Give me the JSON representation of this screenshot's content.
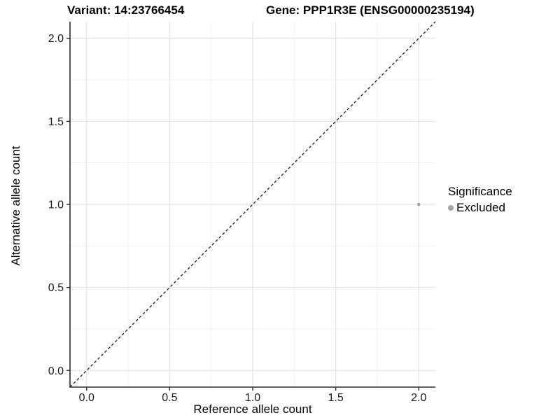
{
  "figure": {
    "title_left": "Variant: 14:23766454",
    "title_right": "Gene: PPP1R3E (ENSG00000235194)"
  },
  "chart_data": {
    "type": "scatter",
    "title": "Variant: 14:23766454   Gene: PPP1R3E (ENSG00000235194)",
    "xlabel": "Reference allele count",
    "ylabel": "Alternative allele count",
    "xlim": [
      -0.1,
      2.1
    ],
    "ylim": [
      -0.1,
      2.1
    ],
    "x_ticks": [
      0.0,
      0.5,
      1.0,
      1.5,
      2.0
    ],
    "y_ticks": [
      0.0,
      0.5,
      1.0,
      1.5,
      2.0
    ],
    "x_tick_labels": [
      "0.0",
      "0.5",
      "1.0",
      "1.5",
      "2.0"
    ],
    "y_tick_labels": [
      "0.0",
      "0.5",
      "1.0",
      "1.5",
      "2.0"
    ],
    "x_minor_ticks": [
      0.25,
      0.75,
      1.25,
      1.75
    ],
    "y_minor_ticks": [
      0.25,
      0.75,
      1.25,
      1.75
    ],
    "grid": true,
    "legend_position": "right",
    "series": [
      {
        "name": "Excluded",
        "marker": "circle",
        "color": "#a3a3a3",
        "point_radius": 2.3,
        "points": [
          {
            "x": 2.0,
            "y": 1.0
          }
        ]
      }
    ],
    "reference_line": {
      "style": "dashed",
      "from": [
        -0.1,
        -0.1
      ],
      "to": [
        2.1,
        2.1
      ],
      "color": "#1a1a1a"
    },
    "legend": {
      "title": "Significance",
      "entries": [
        {
          "label": "Excluded",
          "color": "#a3a3a3",
          "marker": "circle"
        }
      ]
    },
    "colors": {
      "grid_major": "#e4e4e4",
      "grid_minor": "#f1f1f1",
      "axis_line": "#2b2b2b",
      "tick_mark": "#2b2b2b",
      "tick_label": "#1a1a1a",
      "background": "#ffffff"
    }
  }
}
